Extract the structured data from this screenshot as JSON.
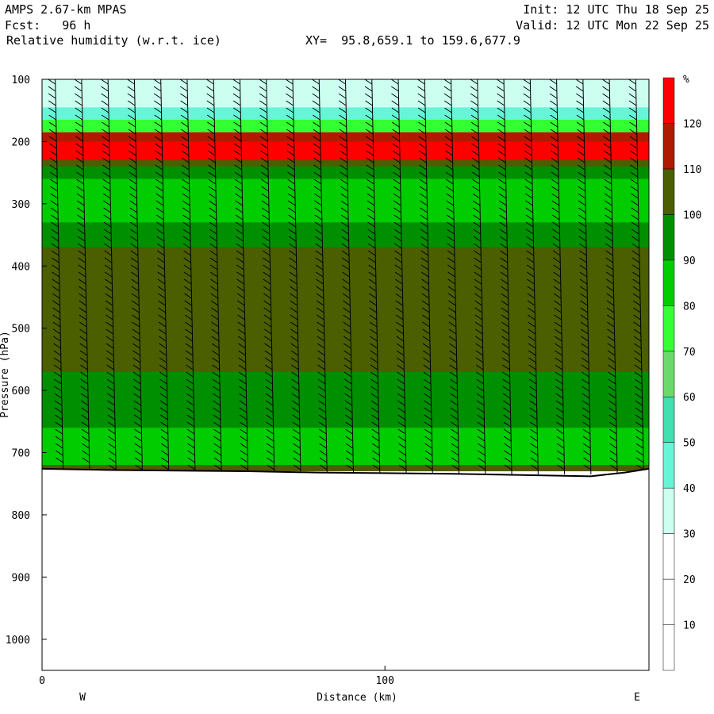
{
  "header": {
    "model": "AMPS 2.67-km MPAS",
    "fcst": "Fcst:   96 h",
    "field": "Relative humidity (w.r.t. ice)",
    "xy": "XY=  95.8,659.1 to 159.6,677.9",
    "init": "Init: 12 UTC Thu 18 Sep 25",
    "valid": "Valid: 12 UTC Mon 22 Sep 25"
  },
  "chart_data": {
    "type": "heatmap",
    "title": "Relative humidity (w.r.t. ice)",
    "xlabel": "Distance (km)",
    "ylabel": "Pressure (hPa)",
    "xlim": [
      0,
      177
    ],
    "ylim": [
      1050,
      100
    ],
    "x_ticks": [
      0,
      100
    ],
    "x_tick_labels": [
      "0",
      "100"
    ],
    "y_ticks": [
      100,
      200,
      300,
      400,
      500,
      600,
      700,
      800,
      900,
      1000
    ],
    "y_tick_labels": [
      "100",
      "200",
      "300",
      "400",
      "500",
      "600",
      "700",
      "800",
      "900",
      "1000"
    ],
    "direction_labels": [
      "W",
      "E"
    ],
    "colorbar": {
      "unit": "%",
      "levels": [
        0,
        10,
        20,
        30,
        40,
        50,
        60,
        70,
        80,
        90,
        100,
        110,
        120,
        130
      ],
      "tick_labels": [
        "10",
        "20",
        "30",
        "40",
        "50",
        "60",
        "70",
        "80",
        "90",
        "100",
        "110",
        "120"
      ],
      "colors": [
        "#ffffff",
        "#ffffff",
        "#ffffff",
        "#ccfff0",
        "#66f5d6",
        "#40e0b0",
        "#6cd96c",
        "#33ff33",
        "#00cc00",
        "#008f00",
        "#4b5e00",
        "#b01a00",
        "#ff0000"
      ]
    },
    "terrain_pressure": [
      [
        0,
        726
      ],
      [
        20,
        728
      ],
      [
        40,
        729
      ],
      [
        60,
        730
      ],
      [
        80,
        732
      ],
      [
        100,
        733
      ],
      [
        120,
        734
      ],
      [
        140,
        736
      ],
      [
        160,
        738
      ],
      [
        170,
        732
      ],
      [
        177,
        726
      ]
    ],
    "regions": [
      {
        "rh": 30,
        "pressure_top": 100,
        "pressure_bottom": 145
      },
      {
        "rh": 45,
        "pressure_top": 145,
        "pressure_bottom": 165
      },
      {
        "rh": 75,
        "pressure_top": 165,
        "pressure_bottom": 185
      },
      {
        "rh": 112,
        "pressure_top": 185,
        "pressure_bottom": 300
      },
      {
        "rh": 125,
        "pressure_top": 200,
        "pressure_bottom": 270
      },
      {
        "rh": 105,
        "pressure_top": 230,
        "pressure_bottom": 730
      },
      {
        "rh": 95,
        "pressure_top": 240,
        "pressure_bottom": 370
      },
      {
        "rh": 85,
        "pressure_top": 260,
        "pressure_bottom": 330
      },
      {
        "rh": 95,
        "pressure_top": 570,
        "pressure_bottom": 660
      },
      {
        "rh": 85,
        "pressure_top": 660,
        "pressure_bottom": 720
      }
    ],
    "wind_barbs": {
      "columns": 23,
      "pressure_top": 100,
      "pressure_bottom": 735
    }
  }
}
